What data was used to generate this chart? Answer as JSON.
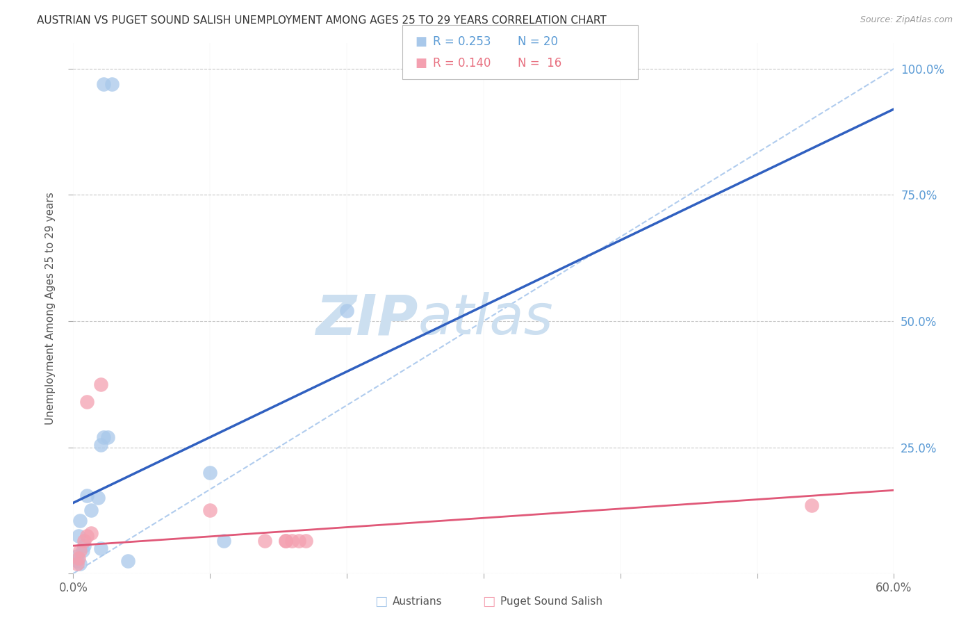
{
  "title": "AUSTRIAN VS PUGET SOUND SALISH UNEMPLOYMENT AMONG AGES 25 TO 29 YEARS CORRELATION CHART",
  "source": "Source: ZipAtlas.com",
  "ylabel": "Unemployment Among Ages 25 to 29 years",
  "xlim": [
    0.0,
    0.6
  ],
  "ylim": [
    0.0,
    1.05
  ],
  "ytick_vals": [
    0.0,
    0.25,
    0.5,
    0.75,
    1.0
  ],
  "ytick_labels": [
    "",
    "25.0%",
    "50.0%",
    "75.0%",
    "100.0%"
  ],
  "xtick_vals": [
    0.0,
    0.1,
    0.2,
    0.3,
    0.4,
    0.5,
    0.6
  ],
  "xtick_labels": [
    "0.0%",
    "",
    "",
    "",
    "",
    "",
    "60.0%"
  ],
  "background_color": "#ffffff",
  "grid_color": "#c8c8c8",
  "title_color": "#333333",
  "title_fontsize": 11,
  "axis_label_color": "#555555",
  "tick_color_x": "#666666",
  "tick_color_y": "#5b9bd5",
  "watermark_zip": "ZIP",
  "watermark_atlas": "atlas",
  "watermark_color": "#ccdff0",
  "R1": "0.253",
  "N1": "20",
  "R2": "0.140",
  "N2": "16",
  "legend_color1": "#5b9bd5",
  "legend_color2": "#e87080",
  "austrians_x": [
    0.022,
    0.028,
    0.005,
    0.007,
    0.008,
    0.003,
    0.003,
    0.004,
    0.005,
    0.01,
    0.013,
    0.018,
    0.02,
    0.02,
    0.1,
    0.11,
    0.2,
    0.022,
    0.025,
    0.04
  ],
  "austrians_y": [
    0.97,
    0.97,
    0.02,
    0.045,
    0.055,
    0.025,
    0.035,
    0.075,
    0.105,
    0.155,
    0.125,
    0.15,
    0.255,
    0.05,
    0.2,
    0.065,
    0.52,
    0.27,
    0.27,
    0.025
  ],
  "puget_x": [
    0.003,
    0.004,
    0.005,
    0.008,
    0.01,
    0.013,
    0.02,
    0.1,
    0.14,
    0.155,
    0.155,
    0.16,
    0.165,
    0.17,
    0.54,
    0.01
  ],
  "puget_y": [
    0.02,
    0.03,
    0.045,
    0.065,
    0.075,
    0.08,
    0.375,
    0.125,
    0.065,
    0.065,
    0.065,
    0.065,
    0.065,
    0.065,
    0.135,
    0.34
  ],
  "scatter_blue": "#a8c8ea",
  "scatter_pink": "#f4a0b0",
  "blue_line_color": "#3060c0",
  "pink_line_color": "#e05878",
  "dashed_line_color": "#b0ccee",
  "blue_trend_x0": 0.0,
  "blue_trend_y0": 0.14,
  "blue_trend_x1": 0.2,
  "blue_trend_y1": 0.4,
  "pink_trend_x0": 0.0,
  "pink_trend_y0": 0.055,
  "pink_trend_x1": 0.6,
  "pink_trend_y1": 0.165
}
